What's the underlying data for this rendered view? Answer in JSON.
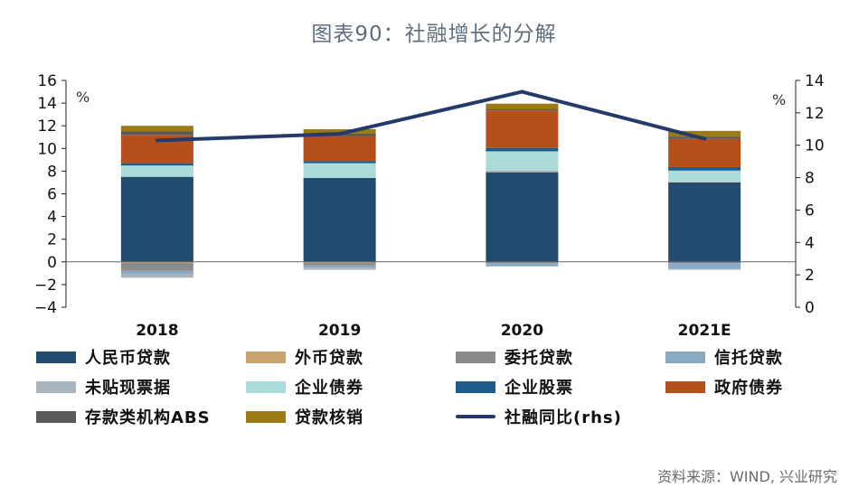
{
  "title": "图表90：社融增长的分解",
  "source": "资料来源：WIND, 兴业研究",
  "chart_data": {
    "type": "bar",
    "stacked": true,
    "categories": [
      "2018",
      "2019",
      "2020",
      "2021E"
    ],
    "left_axis": {
      "unit": "%",
      "ylim": [
        -4,
        16
      ],
      "ticks": [
        -4,
        -2,
        0,
        2,
        4,
        6,
        8,
        10,
        12,
        14,
        16
      ]
    },
    "right_axis": {
      "unit": "%",
      "ylim": [
        0,
        14
      ],
      "ticks": [
        0,
        2,
        4,
        6,
        8,
        10,
        12,
        14
      ]
    },
    "grid": false,
    "legend_position": "bottom",
    "series": [
      {
        "name": "人民币贷款",
        "color": "#234b70",
        "values": [
          7.5,
          7.4,
          7.9,
          7.0
        ]
      },
      {
        "name": "外币贷款",
        "color": "#c9a46e",
        "values": [
          -0.1,
          -0.1,
          0.05,
          0.05
        ]
      },
      {
        "name": "委托贷款",
        "color": "#8a8a8a",
        "values": [
          -0.7,
          -0.2,
          -0.1,
          -0.1
        ]
      },
      {
        "name": "信托贷款",
        "color": "#8aa9c4",
        "values": [
          -0.3,
          -0.2,
          -0.3,
          -0.5
        ]
      },
      {
        "name": "未贴现票据",
        "color": "#a9b4bd",
        "values": [
          -0.3,
          -0.2,
          0.1,
          -0.1
        ]
      },
      {
        "name": "企业债券",
        "color": "#abdbdb",
        "values": [
          1.0,
          1.3,
          1.7,
          1.0
        ]
      },
      {
        "name": "企业股票",
        "color": "#1f5c8c",
        "values": [
          0.2,
          0.2,
          0.3,
          0.3
        ]
      },
      {
        "name": "政府债券",
        "color": "#b5501c",
        "values": [
          2.5,
          2.2,
          3.3,
          2.5
        ]
      },
      {
        "name": "存款类机构ABS",
        "color": "#5a5a5a",
        "values": [
          0.3,
          0.2,
          0.1,
          0.2
        ]
      },
      {
        "name": "贷款核销",
        "color": "#9c7a16",
        "values": [
          0.5,
          0.4,
          0.5,
          0.5
        ]
      }
    ],
    "line_series": {
      "name": "社融同比(rhs)",
      "axis": "right",
      "color": "#233a6b",
      "values": [
        10.3,
        10.7,
        13.3,
        10.4
      ]
    }
  }
}
